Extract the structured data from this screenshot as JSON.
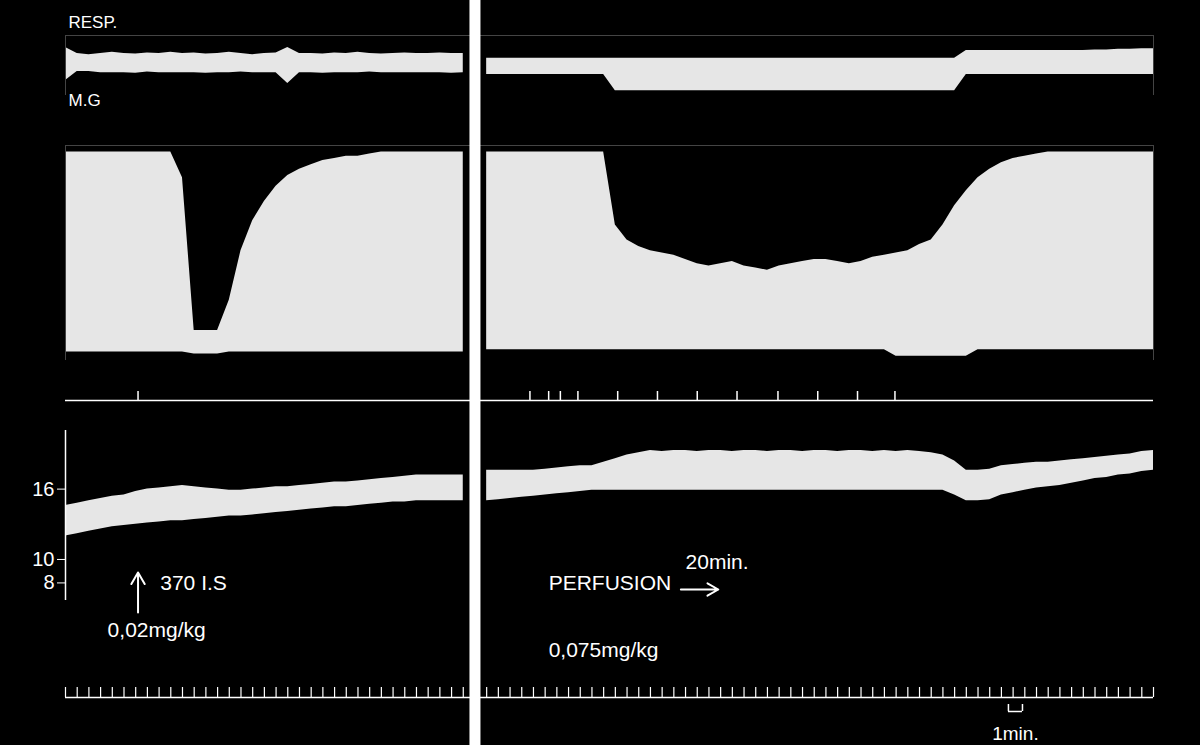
{
  "chart_data": [
    {
      "type": "area",
      "title": "RESP.",
      "color": "#ffffff",
      "tick_labels": false,
      "xlim": [
        0,
        93
      ],
      "ylim": [
        0,
        100
      ],
      "x": [
        0,
        1,
        2,
        3,
        4,
        5,
        6,
        7,
        8,
        9,
        10,
        11,
        12,
        13,
        14,
        15,
        16,
        17,
        18,
        19,
        20,
        21,
        22,
        23,
        24,
        25,
        26,
        27,
        28,
        29,
        30,
        31,
        32,
        33,
        34,
        35,
        36,
        37,
        38,
        39,
        40,
        41,
        42,
        43,
        44,
        45,
        46,
        47,
        48,
        49,
        50,
        51,
        52,
        53,
        54,
        55,
        56,
        57,
        58,
        59,
        60,
        61,
        62,
        63,
        64,
        65,
        66,
        67,
        68,
        69,
        70,
        71,
        72,
        73,
        74,
        75,
        76,
        77,
        78,
        79,
        80,
        81,
        82,
        83,
        84,
        85,
        86,
        87,
        88,
        89,
        90,
        91,
        92,
        93
      ],
      "high": [
        80,
        70,
        68,
        70,
        72,
        70,
        69,
        71,
        70,
        72,
        70,
        71,
        69,
        70,
        72,
        70,
        68,
        70,
        71,
        80,
        70,
        70,
        69,
        71,
        70,
        72,
        70,
        69,
        70,
        71,
        70,
        70,
        71,
        70,
        70,
        null,
        62,
        62,
        62,
        62,
        62,
        62,
        62,
        62,
        62,
        62,
        62,
        62,
        62,
        62,
        62,
        62,
        62,
        62,
        62,
        62,
        62,
        62,
        62,
        62,
        62,
        62,
        62,
        62,
        62,
        62,
        62,
        62,
        62,
        62,
        62,
        62,
        62,
        62,
        62,
        62,
        62,
        75,
        75,
        75,
        75,
        75,
        75,
        75,
        75,
        75,
        75,
        75,
        76,
        76,
        77,
        77,
        78,
        78
      ],
      "low": [
        25,
        40,
        40,
        38,
        38,
        38,
        37,
        39,
        38,
        38,
        38,
        38,
        37,
        38,
        38,
        39,
        38,
        38,
        38,
        20,
        38,
        38,
        37,
        38,
        38,
        38,
        39,
        38,
        38,
        38,
        38,
        38,
        38,
        37,
        38,
        null,
        35,
        35,
        35,
        35,
        35,
        35,
        35,
        35,
        35,
        35,
        35,
        8,
        8,
        8,
        8,
        8,
        8,
        8,
        8,
        8,
        8,
        8,
        8,
        8,
        8,
        8,
        8,
        8,
        8,
        8,
        8,
        8,
        8,
        8,
        8,
        8,
        8,
        8,
        8,
        8,
        8,
        35,
        35,
        35,
        35,
        35,
        35,
        35,
        35,
        35,
        35,
        35,
        35,
        35,
        35,
        35,
        35,
        35
      ]
    },
    {
      "type": "area",
      "title": "M.G",
      "color": "#ffffff",
      "tick_labels": false,
      "xlim": [
        0,
        93
      ],
      "ylim": [
        0,
        100
      ],
      "x": [
        0,
        1,
        2,
        3,
        4,
        5,
        6,
        7,
        8,
        9,
        10,
        11,
        12,
        13,
        14,
        15,
        16,
        17,
        18,
        19,
        20,
        21,
        22,
        23,
        24,
        25,
        26,
        27,
        28,
        29,
        30,
        31,
        32,
        33,
        34,
        35,
        36,
        37,
        38,
        39,
        40,
        41,
        42,
        43,
        44,
        45,
        46,
        47,
        48,
        49,
        50,
        51,
        52,
        53,
        54,
        55,
        56,
        57,
        58,
        59,
        60,
        61,
        62,
        63,
        64,
        65,
        66,
        67,
        68,
        69,
        70,
        71,
        72,
        73,
        74,
        75,
        76,
        77,
        78,
        79,
        80,
        81,
        82,
        83,
        84,
        85,
        86,
        87,
        88,
        89,
        90,
        91,
        92,
        93
      ],
      "high": [
        97,
        97,
        97,
        97,
        97,
        97,
        97,
        97,
        97,
        97,
        85,
        14,
        14,
        14,
        28,
        51,
        65,
        74,
        81,
        86,
        89,
        91,
        93,
        94,
        95,
        95,
        96,
        97,
        97,
        97,
        97,
        97,
        97,
        97,
        97,
        null,
        97,
        97,
        97,
        97,
        97,
        97,
        97,
        97,
        97,
        97,
        97,
        63,
        56,
        53,
        51,
        50,
        49,
        47,
        45,
        44,
        45,
        46,
        44,
        43,
        42,
        44,
        45,
        46,
        47,
        47,
        46,
        45,
        46,
        48,
        49,
        50,
        51,
        54,
        56,
        63,
        72,
        79,
        85,
        89,
        92,
        94,
        95,
        96,
        97,
        97,
        97,
        97,
        97,
        97,
        97,
        97,
        97,
        97
      ],
      "low": [
        4,
        4,
        4,
        4,
        4,
        4,
        4,
        4,
        4,
        4,
        4,
        3,
        3,
        3,
        4,
        4,
        4,
        4,
        4,
        4,
        4,
        4,
        4,
        4,
        4,
        4,
        4,
        4,
        4,
        4,
        4,
        4,
        4,
        4,
        4,
        null,
        5,
        5,
        5,
        5,
        5,
        5,
        5,
        5,
        5,
        5,
        5,
        5,
        5,
        5,
        5,
        5,
        5,
        5,
        5,
        5,
        5,
        5,
        5,
        5,
        5,
        5,
        5,
        5,
        5,
        5,
        5,
        5,
        5,
        5,
        5,
        2,
        2,
        2,
        2,
        2,
        2,
        2,
        5,
        5,
        5,
        5,
        5,
        5,
        5,
        5,
        5,
        5,
        5,
        5,
        5,
        5,
        5,
        5
      ]
    },
    {
      "type": "area",
      "color": "#ffffff",
      "tick_labels": "y",
      "xlim": [
        0,
        93
      ],
      "ylim": [
        6.5,
        21
      ],
      "yticks": [
        16,
        10,
        8
      ],
      "xticks": [
        0,
        1,
        2,
        3,
        4,
        5,
        6,
        7,
        8,
        9,
        10,
        11,
        12,
        13,
        14,
        15,
        16,
        17,
        18,
        19,
        20,
        21,
        22,
        23,
        24,
        25,
        26,
        27,
        28,
        29,
        30,
        31,
        32,
        33,
        34,
        35,
        36,
        37,
        38,
        39,
        40,
        41,
        42,
        43,
        44,
        45,
        46,
        47,
        48,
        49,
        50,
        51,
        52,
        53,
        54,
        55,
        56,
        57,
        58,
        59,
        60,
        61,
        62,
        63,
        64,
        65,
        66,
        67,
        68,
        69,
        70,
        71,
        72,
        73,
        74,
        75,
        76,
        77,
        78,
        79,
        80,
        81,
        82,
        83,
        84,
        85,
        86,
        87,
        88,
        89,
        90,
        91,
        92,
        93
      ],
      "x": [
        0,
        1,
        2,
        3,
        4,
        5,
        6,
        7,
        8,
        9,
        10,
        11,
        12,
        13,
        14,
        15,
        16,
        17,
        18,
        19,
        20,
        21,
        22,
        23,
        24,
        25,
        26,
        27,
        28,
        29,
        30,
        31,
        32,
        33,
        34,
        35,
        36,
        37,
        38,
        39,
        40,
        41,
        42,
        43,
        44,
        45,
        46,
        47,
        48,
        49,
        50,
        51,
        52,
        53,
        54,
        55,
        56,
        57,
        58,
        59,
        60,
        61,
        62,
        63,
        64,
        65,
        66,
        67,
        68,
        69,
        70,
        71,
        72,
        73,
        74,
        75,
        76,
        77,
        78,
        79,
        80,
        81,
        82,
        83,
        84,
        85,
        86,
        87,
        88,
        89,
        90,
        91,
        92,
        93
      ],
      "high": [
        14.6,
        14.8,
        15.0,
        15.2,
        15.4,
        15.5,
        15.8,
        16.0,
        16.1,
        16.2,
        16.3,
        16.2,
        16.1,
        16.0,
        15.9,
        15.9,
        16.0,
        16.1,
        16.2,
        16.2,
        16.3,
        16.4,
        16.5,
        16.6,
        16.6,
        16.7,
        16.8,
        16.9,
        17.0,
        17.1,
        17.2,
        17.2,
        17.2,
        17.2,
        17.2,
        null,
        17.6,
        17.6,
        17.6,
        17.6,
        17.6,
        17.7,
        17.8,
        17.9,
        18.0,
        18.0,
        18.3,
        18.6,
        18.9,
        19.1,
        19.3,
        19.2,
        19.3,
        19.3,
        19.2,
        19.3,
        19.3,
        19.2,
        19.3,
        19.3,
        19.2,
        19.3,
        19.3,
        19.2,
        19.3,
        19.3,
        19.2,
        19.3,
        19.3,
        19.2,
        19.3,
        19.2,
        19.3,
        19.2,
        19.1,
        18.9,
        18.4,
        17.6,
        17.6,
        17.7,
        18.0,
        18.1,
        18.2,
        18.3,
        18.3,
        18.4,
        18.5,
        18.6,
        18.7,
        18.8,
        18.9,
        19.0,
        19.2,
        19.3
      ],
      "low": [
        12.0,
        12.2,
        12.4,
        12.6,
        12.8,
        12.9,
        13.0,
        13.1,
        13.2,
        13.3,
        13.3,
        13.4,
        13.5,
        13.6,
        13.7,
        13.7,
        13.8,
        13.9,
        14.0,
        14.1,
        14.2,
        14.3,
        14.4,
        14.5,
        14.5,
        14.6,
        14.7,
        14.8,
        14.9,
        14.9,
        15.0,
        15.0,
        15.0,
        15.0,
        15.0,
        null,
        15.0,
        15.1,
        15.2,
        15.3,
        15.4,
        15.5,
        15.6,
        15.7,
        15.8,
        15.9,
        15.9,
        15.9,
        15.9,
        15.9,
        15.9,
        15.9,
        15.9,
        15.9,
        15.9,
        15.9,
        15.9,
        15.9,
        15.9,
        15.9,
        15.9,
        15.9,
        15.9,
        15.9,
        15.9,
        15.9,
        15.9,
        15.9,
        15.9,
        15.9,
        15.9,
        15.9,
        15.9,
        15.9,
        15.9,
        15.9,
        15.5,
        15.0,
        15.0,
        15.1,
        15.5,
        15.7,
        15.9,
        16.1,
        16.2,
        16.3,
        16.5,
        16.7,
        16.9,
        17.0,
        17.2,
        17.3,
        17.5,
        17.6
      ],
      "events": [
        6.2,
        39.7,
        41.3,
        42.3,
        43.8,
        47.2,
        50.6,
        54.0,
        57.4,
        60.9,
        64.3,
        67.7,
        70.9
      ],
      "annotations": [
        {
          "text": "370 I.S",
          "x": 8.1
        },
        {
          "text": "0,02mg/kg",
          "x": 3.6
        },
        {
          "text": "PERFUSION",
          "x": 41.3
        },
        {
          "text": "20min.",
          "x": 53.0
        },
        {
          "text": "0,075mg/kg",
          "x": 41.3
        }
      ],
      "scale_bar": {
        "label": "1min.",
        "x": [
          80.6,
          81.8
        ]
      }
    }
  ]
}
